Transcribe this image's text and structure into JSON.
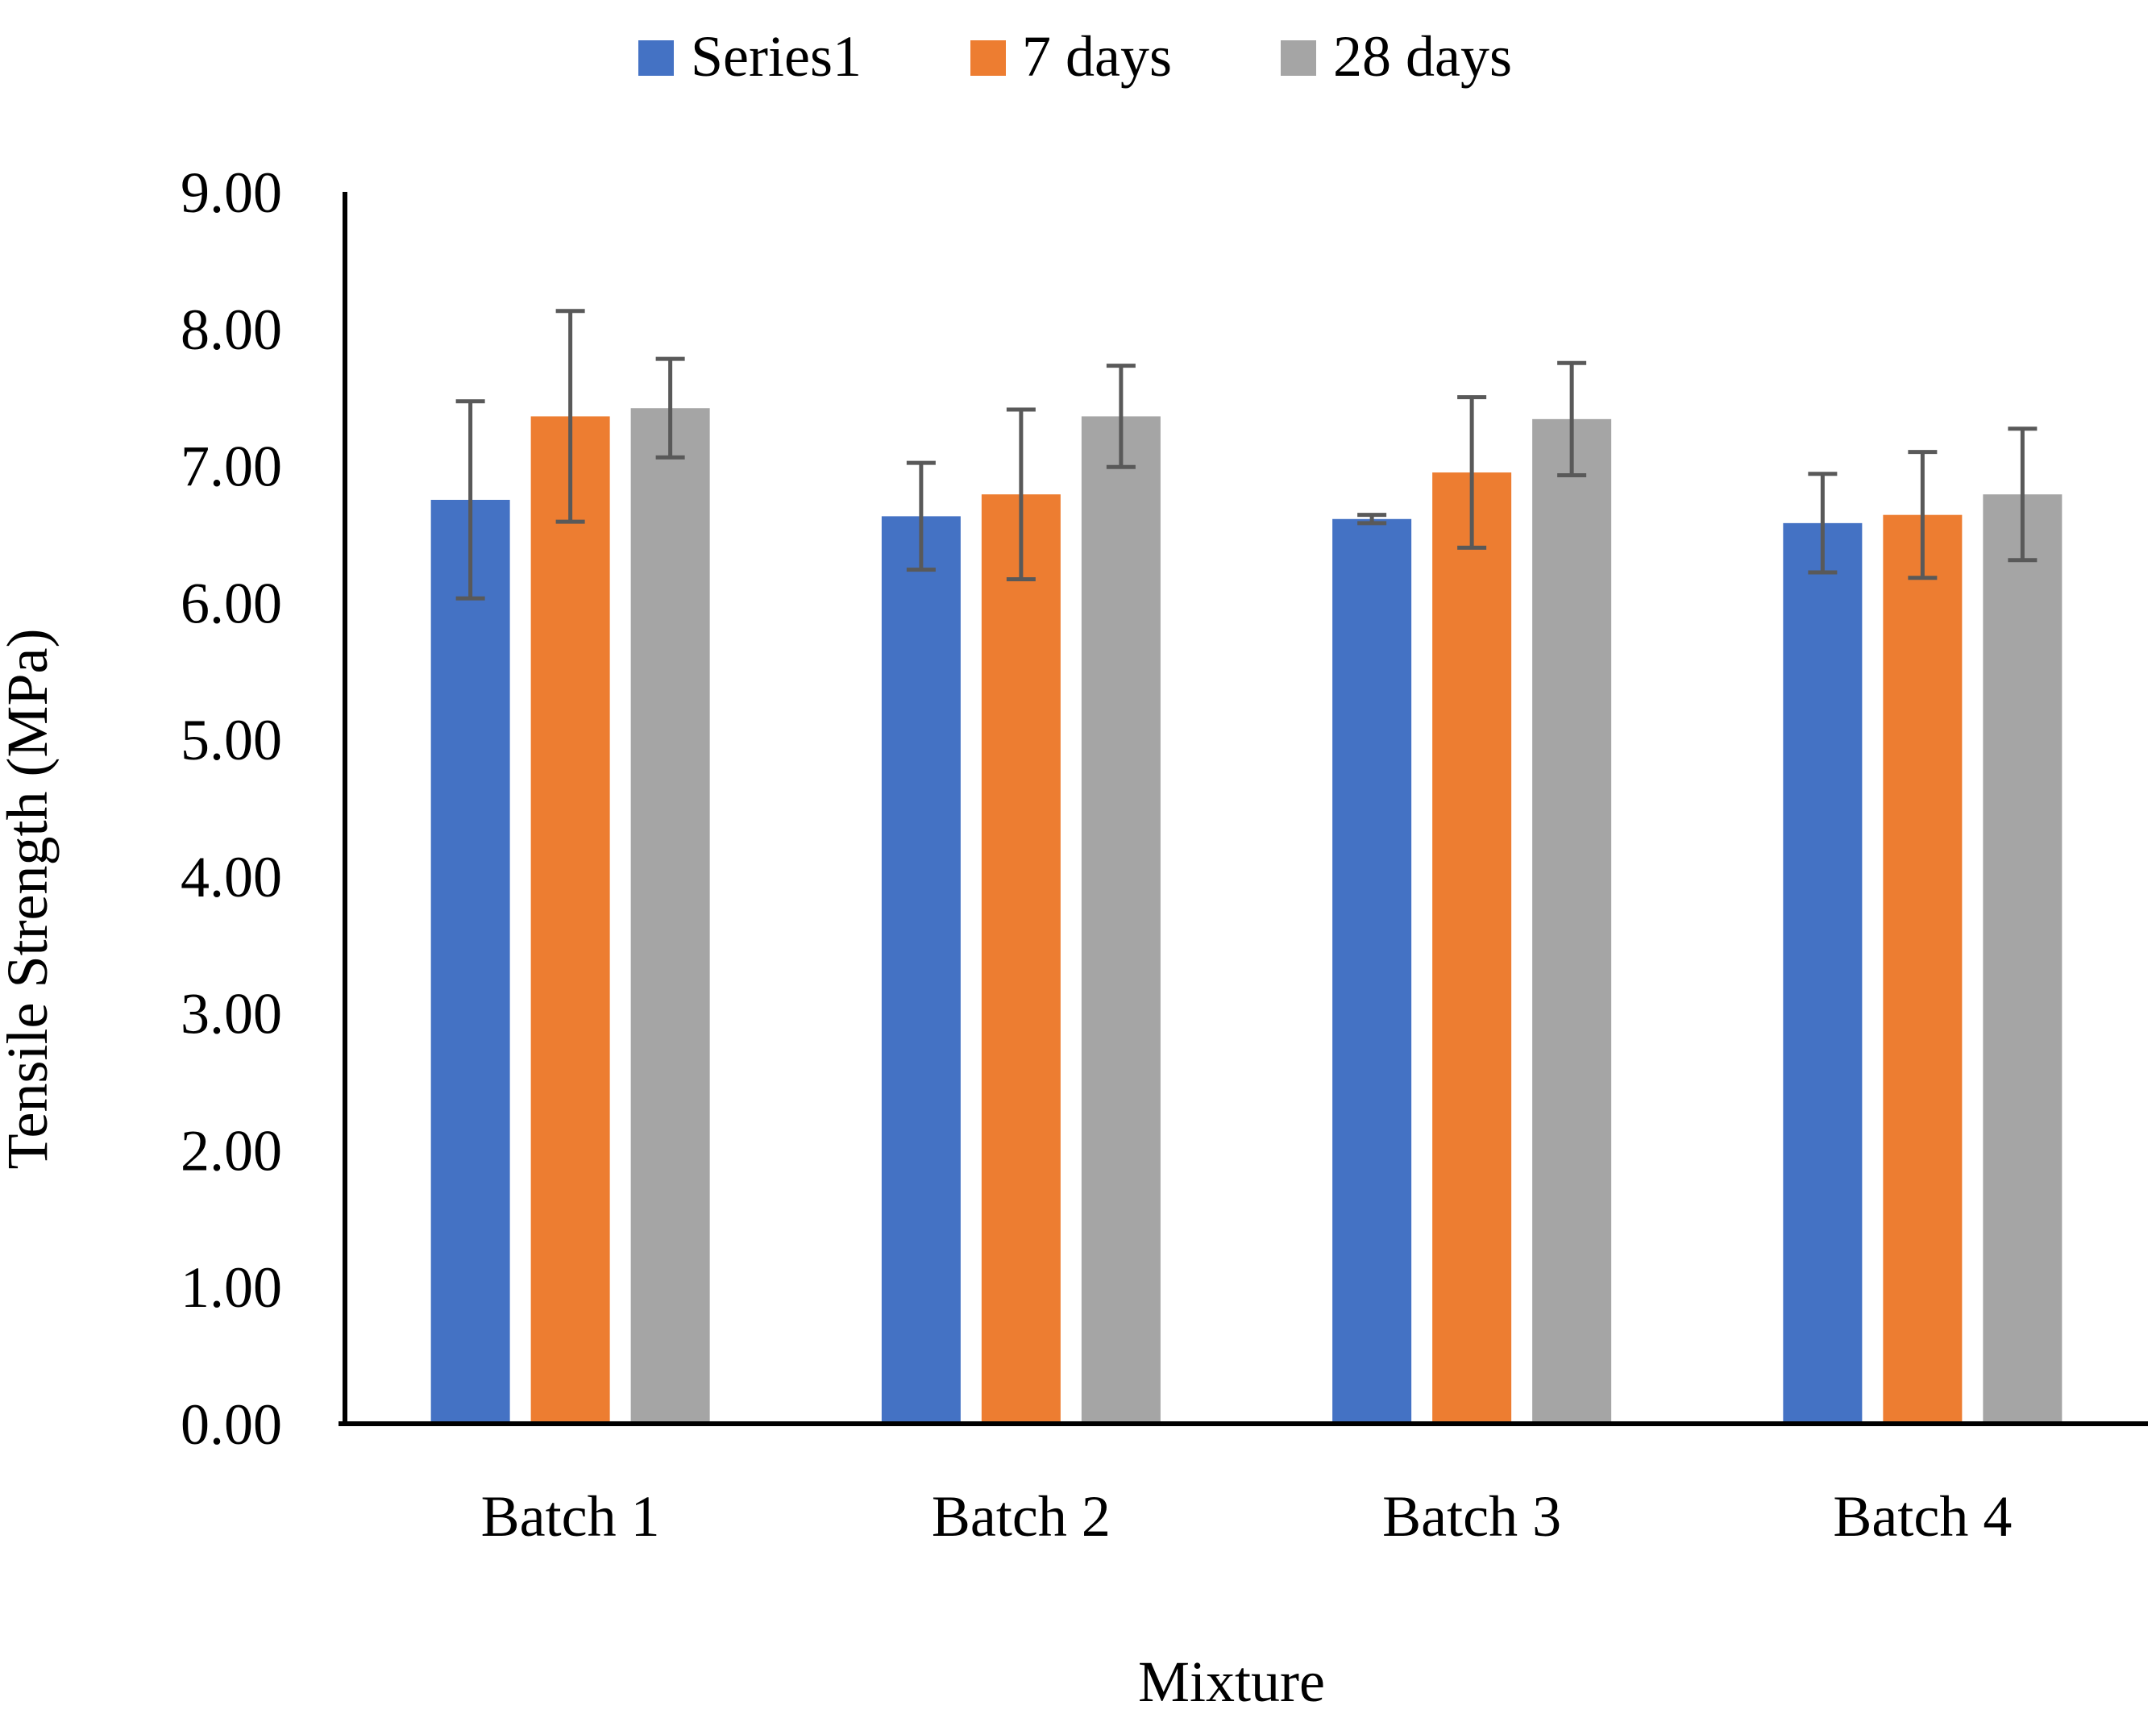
{
  "chart_data": {
    "type": "bar",
    "title": "",
    "xlabel": "Mixture",
    "ylabel": "Tensile Strength (MPa)",
    "ylim": [
      0,
      9
    ],
    "ytick_values": [
      0,
      1,
      2,
      3,
      4,
      5,
      6,
      7,
      8,
      9
    ],
    "ytick_labels": [
      "0.00",
      "1.00",
      "2.00",
      "3.00",
      "4.00",
      "5.00",
      "6.00",
      "7.00",
      "8.00",
      "9.00"
    ],
    "categories": [
      "Batch 1",
      "Batch 2",
      "Batch 3",
      "Batch 4"
    ],
    "legend_position": "top-center",
    "grid": false,
    "series": [
      {
        "name": "Series1",
        "color": "#4472C4",
        "values": [
          6.75,
          6.63,
          6.61,
          6.58
        ],
        "errors": [
          0.72,
          0.39,
          0.03,
          0.36
        ]
      },
      {
        "name": "7 days",
        "color": "#ED7D31",
        "values": [
          7.36,
          6.79,
          6.95,
          6.64
        ],
        "errors": [
          0.77,
          0.62,
          0.55,
          0.46
        ]
      },
      {
        "name": "28 days",
        "color": "#A5A5A5",
        "values": [
          7.42,
          7.36,
          7.34,
          6.79
        ],
        "errors": [
          0.36,
          0.37,
          0.41,
          0.48
        ]
      }
    ],
    "error_bar_color": "#595959"
  }
}
